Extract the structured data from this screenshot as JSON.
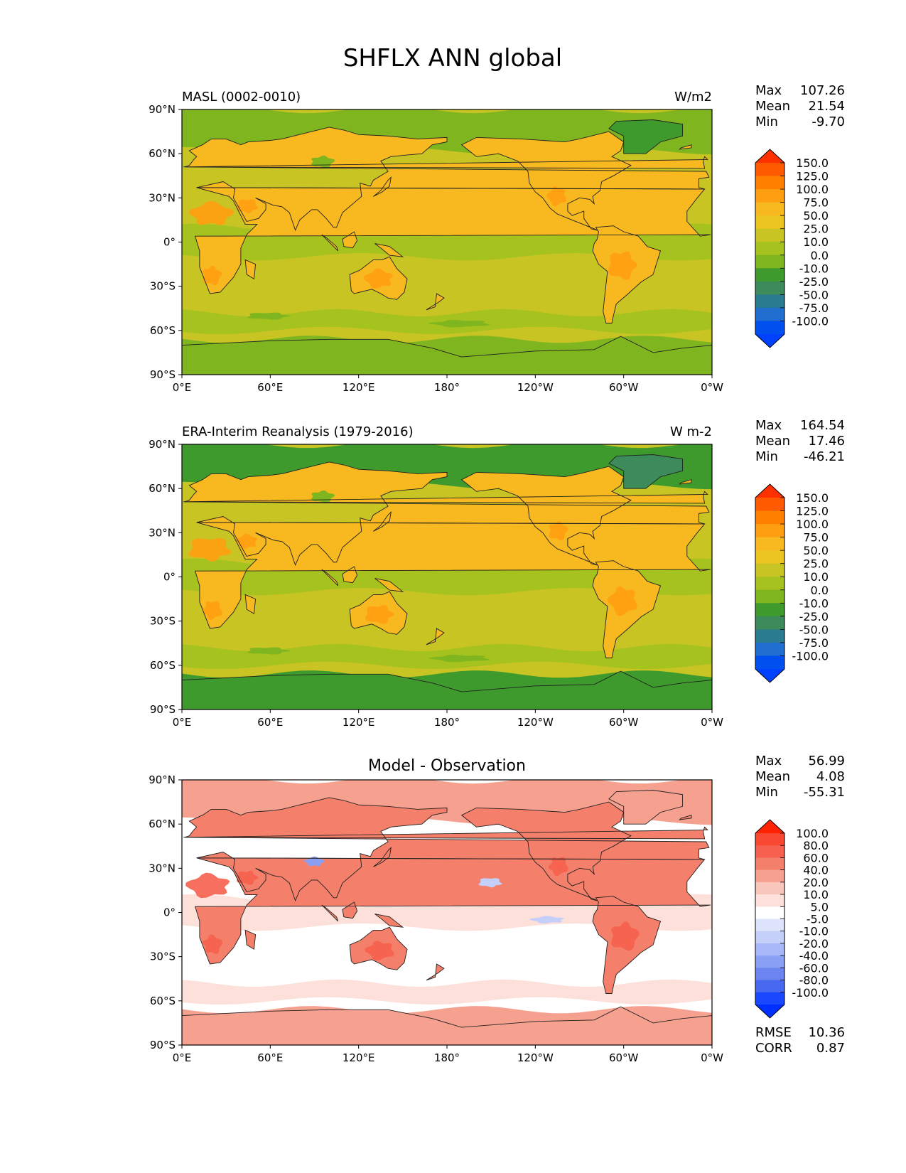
{
  "chart_data": {
    "title": "SHFLX ANN global",
    "type": "heatmap",
    "lon_ticks": [
      "0°E",
      "60°E",
      "120°E",
      "180°",
      "120°W",
      "60°W",
      "0°W"
    ],
    "lat_ticks": [
      "90°N",
      "60°N",
      "30°N",
      "0°",
      "30°S",
      "60°S",
      "90°S"
    ],
    "panels": [
      {
        "id": "test",
        "title_left": "MASL (0002-0010)",
        "title_center": "",
        "title_right": "W/m2",
        "stats": [
          {
            "label": "Max",
            "value": "107.26"
          },
          {
            "label": "Mean",
            "value": "21.54"
          },
          {
            "label": "Min",
            "value": "-9.70"
          }
        ],
        "colorbar": {
          "levels": [
            "150.0",
            "125.0",
            "100.0",
            "75.0",
            "50.0",
            "25.0",
            "10.0",
            "0.0",
            "-10.0",
            "-25.0",
            "-50.0",
            "-75.0",
            "-100.0"
          ],
          "colors": [
            "#ff3000",
            "#ff5a00",
            "#ff7f00",
            "#ff9e10",
            "#f7b820",
            "#edc520",
            "#c8c424",
            "#a6c21f",
            "#7fb51f",
            "#3e9a2c",
            "#3d8a5a",
            "#2a7a90",
            "#1f6ed0",
            "#0050f0",
            "#0040ff"
          ]
        },
        "field": {
          "land_value": "25.0 to 75.0",
          "ocean_value": "10.0 to 25.0",
          "polar_value": "-10.0 to 0.0"
        }
      },
      {
        "id": "ref",
        "title_left": "ERA-Interim Reanalysis (1979-2016)",
        "title_center": "",
        "title_right": "W m-2",
        "stats": [
          {
            "label": "Max",
            "value": "164.54"
          },
          {
            "label": "Mean",
            "value": "17.46"
          },
          {
            "label": "Min",
            "value": "-46.21"
          }
        ],
        "colorbar": {
          "levels": [
            "150.0",
            "125.0",
            "100.0",
            "75.0",
            "50.0",
            "25.0",
            "10.0",
            "0.0",
            "-10.0",
            "-25.0",
            "-50.0",
            "-75.0",
            "-100.0"
          ],
          "colors": [
            "#ff3000",
            "#ff5a00",
            "#ff7f00",
            "#ff9e10",
            "#f7b820",
            "#edc520",
            "#c8c424",
            "#a6c21f",
            "#7fb51f",
            "#3e9a2c",
            "#3d8a5a",
            "#2a7a90",
            "#1f6ed0",
            "#0050f0",
            "#0040ff"
          ]
        },
        "field": {
          "land_value": "25.0 to 100.0",
          "ocean_value": "10.0 to 25.0",
          "polar_value": "-25.0 to -10.0"
        }
      },
      {
        "id": "diff",
        "title_left": "",
        "title_center": "Model - Observation",
        "title_right": "",
        "stats": [
          {
            "label": "Max",
            "value": "56.99"
          },
          {
            "label": "Mean",
            "value": "4.08"
          },
          {
            "label": "Min",
            "value": "-55.31"
          }
        ],
        "colorbar": {
          "levels": [
            "100.0",
            "80.0",
            "60.0",
            "40.0",
            "20.0",
            "10.0",
            "5.0",
            "-5.0",
            "-10.0",
            "-20.0",
            "-40.0",
            "-60.0",
            "-80.0",
            "-100.0"
          ],
          "colors": [
            "#ff2200",
            "#f84832",
            "#f6604e",
            "#f4806c",
            "#f6a090",
            "#f9c6bc",
            "#fde0da",
            "#ffffff",
            "#dde4fb",
            "#c4cffa",
            "#a8b8f8",
            "#8aa0f4",
            "#6c84f0",
            "#4868f0",
            "#1a48ff",
            "#0030ff"
          ]
        },
        "field": {
          "land_value": "10.0 to 40.0",
          "ocean_value": "-5.0 to 5.0",
          "polar_value": "10.0 to 20.0"
        },
        "metrics": [
          {
            "label": "RMSE",
            "value": "10.36"
          },
          {
            "label": "CORR",
            "value": "0.87"
          }
        ]
      }
    ]
  }
}
